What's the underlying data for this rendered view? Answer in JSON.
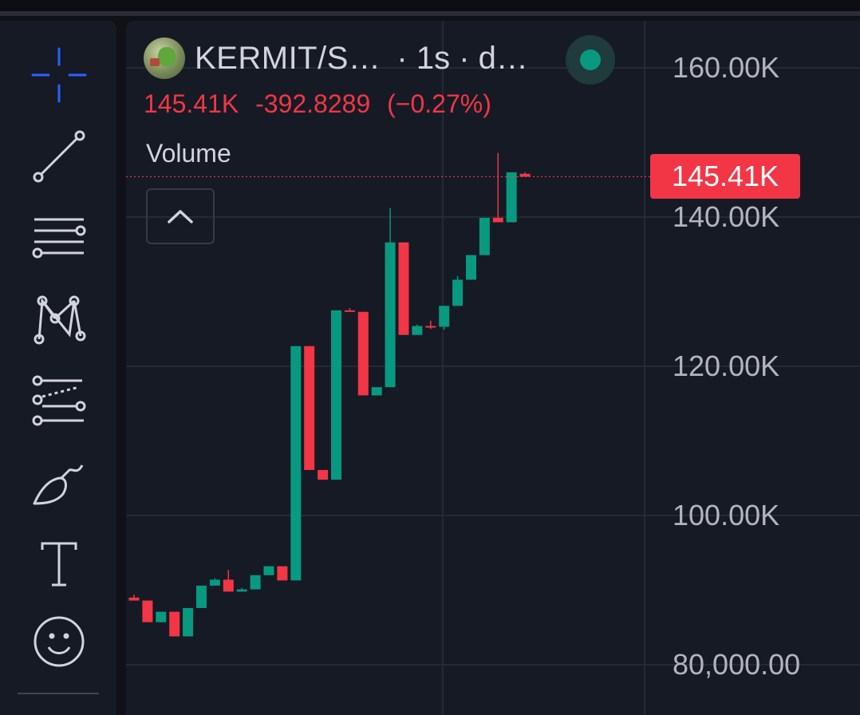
{
  "toolbar": {
    "tools": [
      {
        "name": "crosshair-icon",
        "label": "Crosshair"
      },
      {
        "name": "trend-line-icon",
        "label": "Trend line"
      },
      {
        "name": "horizontal-lines-icon",
        "label": "Fib / levels"
      },
      {
        "name": "pattern-icon",
        "label": "Patterns"
      },
      {
        "name": "prediction-icon",
        "label": "Forecasting"
      },
      {
        "name": "brush-icon",
        "label": "Brush"
      },
      {
        "name": "text-icon",
        "label": "Text"
      },
      {
        "name": "emoji-icon",
        "label": "Icons"
      }
    ]
  },
  "legend": {
    "symbol": "KERMIT/S…",
    "interval": "· 1s · d…",
    "last": "145.41K",
    "change": "-392.8289",
    "change_pct": "(−0.27%)"
  },
  "indicator": {
    "label": "Volume"
  },
  "colors": {
    "up": "#089981",
    "down": "#f23645",
    "background": "#161a25",
    "grid": "#2a2e39",
    "live": "#089981"
  },
  "price_axis": {
    "current_label": "145.41K",
    "labels": [
      "160.00K",
      "140.00K",
      "120.00K",
      "100.00K",
      "80,000.00"
    ]
  },
  "chart_data": {
    "type": "candlestick",
    "y_range": [
      78000,
      164000
    ],
    "ticks": [
      160000,
      140000,
      120000,
      100000,
      80000
    ],
    "current_price": 145410,
    "candles": [
      {
        "o": 89000,
        "h": 89400,
        "l": 88600,
        "c": 88600
      },
      {
        "o": 88600,
        "h": 88600,
        "l": 85700,
        "c": 85700
      },
      {
        "o": 85700,
        "h": 87100,
        "l": 85700,
        "c": 87100
      },
      {
        "o": 87100,
        "h": 87100,
        "l": 83800,
        "c": 83800
      },
      {
        "o": 83800,
        "h": 87600,
        "l": 83800,
        "c": 87600
      },
      {
        "o": 87600,
        "h": 90600,
        "l": 87600,
        "c": 90600
      },
      {
        "o": 90600,
        "h": 91600,
        "l": 90600,
        "c": 91400
      },
      {
        "o": 91400,
        "h": 92700,
        "l": 89800,
        "c": 89800
      },
      {
        "o": 89800,
        "h": 90300,
        "l": 89800,
        "c": 90100
      },
      {
        "o": 90100,
        "h": 92000,
        "l": 90100,
        "c": 92000
      },
      {
        "o": 92000,
        "h": 93200,
        "l": 92000,
        "c": 93200
      },
      {
        "o": 93200,
        "h": 93200,
        "l": 91300,
        "c": 91300
      },
      {
        "o": 91300,
        "h": 122700,
        "l": 91300,
        "c": 122700
      },
      {
        "o": 122700,
        "h": 122700,
        "l": 106100,
        "c": 106100
      },
      {
        "o": 106100,
        "h": 106100,
        "l": 104800,
        "c": 104800
      },
      {
        "o": 104800,
        "h": 127500,
        "l": 104800,
        "c": 127500
      },
      {
        "o": 127500,
        "h": 127800,
        "l": 127300,
        "c": 127300
      },
      {
        "o": 127300,
        "h": 127300,
        "l": 116100,
        "c": 116100
      },
      {
        "o": 116100,
        "h": 117200,
        "l": 116100,
        "c": 117200
      },
      {
        "o": 117200,
        "h": 141200,
        "l": 117200,
        "c": 136600
      },
      {
        "o": 136600,
        "h": 136600,
        "l": 124200,
        "c": 124200
      },
      {
        "o": 124200,
        "h": 125600,
        "l": 124200,
        "c": 125400
      },
      {
        "o": 125400,
        "h": 126100,
        "l": 125000,
        "c": 125300
      },
      {
        "o": 125300,
        "h": 128100,
        "l": 124900,
        "c": 128100
      },
      {
        "o": 128100,
        "h": 132100,
        "l": 128100,
        "c": 131600
      },
      {
        "o": 131600,
        "h": 134900,
        "l": 131600,
        "c": 134900
      },
      {
        "o": 134900,
        "h": 139900,
        "l": 134900,
        "c": 139900
      },
      {
        "o": 139900,
        "h": 148600,
        "l": 139300,
        "c": 139300
      },
      {
        "o": 139300,
        "h": 146000,
        "l": 139300,
        "c": 146000
      },
      {
        "o": 145800,
        "h": 146000,
        "l": 145410,
        "c": 145410
      }
    ]
  }
}
